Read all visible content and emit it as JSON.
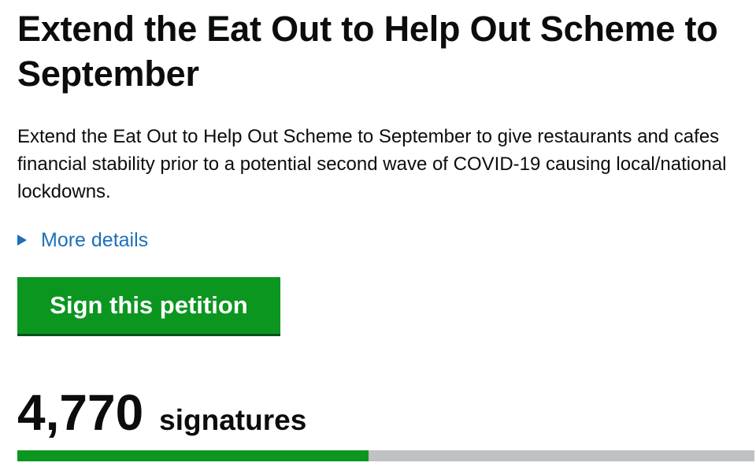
{
  "petition": {
    "title": "Extend the Eat Out to Help Out Scheme to September",
    "description": "Extend the Eat Out to Help Out Scheme to September to give restaurants and cafes financial stability prior to a potential second wave of COVID-19 causing local/national lockdowns.",
    "more_details_label": "More details",
    "sign_button_label": "Sign this petition",
    "signature_count": "4,770",
    "signature_label": "signatures",
    "progress_fraction": 0.477
  },
  "colors": {
    "link": "#1d70b8",
    "button": "#0b9620",
    "progress_fill": "#0b9620",
    "progress_track": "#bfc1c3",
    "text": "#0b0c0c"
  },
  "icons": {
    "details_toggle": "triangle-right-icon"
  }
}
